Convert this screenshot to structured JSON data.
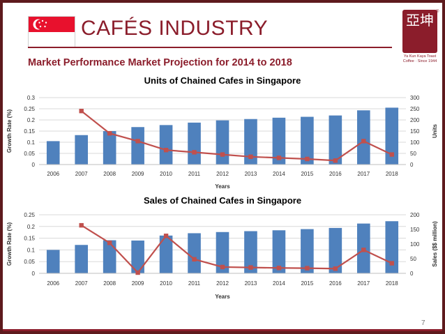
{
  "header": {
    "title": "CAFÉS INDUSTRY",
    "subtitle": "Market Performance  Market Projection for 2014 to 2018",
    "logo_glyph": "亞坤",
    "logo_text": "Ya Kun Kaya Toast",
    "logo_text2": "Coffee · Since 1944",
    "registered_mark": "®"
  },
  "page_number": "7",
  "colors": {
    "bar": "#4f81bd",
    "line": "#c0504d",
    "brand": "#8b1d2b",
    "flag_red": "#e8112d"
  },
  "chart_data": [
    {
      "type": "bar",
      "title": "Units of Chained Cafes in Singapore",
      "categories": [
        "2006",
        "2007",
        "2008",
        "2009",
        "2010",
        "2011",
        "2012",
        "2013",
        "2014",
        "2015",
        "2016",
        "2017",
        "2018"
      ],
      "xlabel": "Years",
      "ylabel": "Growth Rate (%)",
      "y2label": "Units",
      "ylim": [
        0,
        0.3
      ],
      "yticks": [
        "0",
        "0.05",
        "0.1",
        "0.15",
        "0.2",
        "0.25",
        "0.3"
      ],
      "y2lim": [
        0,
        300
      ],
      "y2ticks": [
        "0",
        "50",
        "100",
        "150",
        "200",
        "250",
        "300"
      ],
      "series": [
        {
          "name": "Units",
          "type": "bar",
          "axis": "right",
          "values": [
            105,
            132,
            150,
            168,
            177,
            188,
            198,
            204,
            210,
            214,
            220,
            243,
            255
          ]
        },
        {
          "name": "Growth Rate (%)",
          "type": "line",
          "axis": "left",
          "values": [
            null,
            0.24,
            0.14,
            0.105,
            0.065,
            0.055,
            0.045,
            0.035,
            0.03,
            0.025,
            0.018,
            0.105,
            0.045
          ]
        }
      ]
    },
    {
      "type": "bar",
      "title": "Sales of Chained Cafes in Singapore",
      "categories": [
        "2006",
        "2007",
        "2008",
        "2009",
        "2010",
        "2011",
        "2012",
        "2013",
        "2014",
        "2015",
        "2016",
        "2017",
        "2018"
      ],
      "xlabel": "Years",
      "ylabel": "Growth Rate (%)",
      "y2label": "Sales ($$ million)",
      "ylim": [
        0,
        0.25
      ],
      "yticks": [
        "0",
        "0.05",
        "0.1",
        "0.15",
        "0.2",
        "0.25"
      ],
      "y2lim": [
        0,
        200
      ],
      "y2ticks": [
        "0",
        "50",
        "100",
        "150",
        "200"
      ],
      "series": [
        {
          "name": "Sales ($$ million)",
          "type": "bar",
          "axis": "right",
          "values": [
            80,
            97,
            113,
            112,
            129,
            137,
            141,
            144,
            147,
            151,
            155,
            170,
            178
          ]
        },
        {
          "name": "Growth Rate (%)",
          "type": "line",
          "axis": "left",
          "values": [
            null,
            0.205,
            0.13,
            0.003,
            0.16,
            0.06,
            0.027,
            0.025,
            0.023,
            0.022,
            0.02,
            0.1,
            0.043
          ]
        }
      ]
    }
  ]
}
